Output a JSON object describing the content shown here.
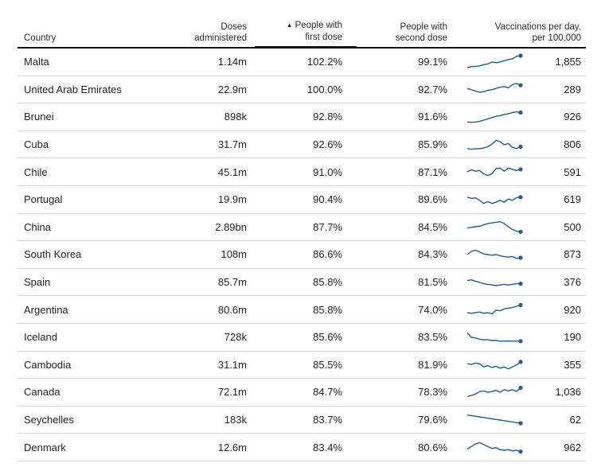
{
  "table": {
    "headers": {
      "country": "Country",
      "doses": [
        "Doses",
        "administered"
      ],
      "first_dose": [
        "People with",
        "first dose"
      ],
      "second_dose": [
        "People with",
        "second dose"
      ],
      "per_day": [
        "Vaccinations per day,",
        "per 100,000"
      ]
    },
    "sorted_column": "first_dose",
    "sort_arrow": "▲"
  },
  "chart_data": {
    "type": "table",
    "columns": [
      "Country",
      "Doses administered",
      "People with first dose",
      "People with second dose",
      "Vaccinations per day, per 100,000"
    ],
    "spark_color": "#1f5f8b",
    "rows": [
      {
        "country": "Malta",
        "doses": "1.14m",
        "first": "102.2%",
        "second": "99.1%",
        "per_day": "1,855",
        "spark": [
          0.05,
          0.15,
          0.15,
          0.2,
          0.3,
          0.35,
          0.5,
          0.45,
          0.5,
          0.6,
          0.7,
          0.75,
          0.95,
          1.0
        ]
      },
      {
        "country": "United Arab Emirates",
        "doses": "22.9m",
        "first": "100.0%",
        "second": "92.7%",
        "per_day": "289",
        "spark": [
          0.55,
          0.45,
          0.35,
          0.25,
          0.3,
          0.4,
          0.45,
          0.55,
          0.65,
          0.7,
          0.6,
          0.85,
          0.95,
          0.8
        ]
      },
      {
        "country": "Brunei",
        "doses": "898k",
        "first": "92.8%",
        "second": "91.6%",
        "per_day": "926",
        "spark": [
          0.1,
          0.08,
          0.1,
          0.15,
          0.25,
          0.35,
          0.45,
          0.55,
          0.6,
          0.7,
          0.75,
          0.85,
          0.9,
          0.85
        ]
      },
      {
        "country": "Cuba",
        "doses": "31.7m",
        "first": "92.6%",
        "second": "85.9%",
        "per_day": "806",
        "spark": [
          0.2,
          0.15,
          0.18,
          0.2,
          0.25,
          0.35,
          0.55,
          0.85,
          0.75,
          0.5,
          0.6,
          0.3,
          0.2,
          0.35
        ]
      },
      {
        "country": "Chile",
        "doses": "45.1m",
        "first": "91.0%",
        "second": "87.1%",
        "per_day": "591",
        "spark": [
          0.5,
          0.65,
          0.55,
          0.6,
          0.35,
          0.2,
          0.35,
          0.75,
          0.8,
          0.55,
          0.8,
          0.7,
          0.6,
          0.7
        ]
      },
      {
        "country": "Portugal",
        "doses": "19.9m",
        "first": "90.4%",
        "second": "89.6%",
        "per_day": "619",
        "spark": [
          0.7,
          0.6,
          0.65,
          0.45,
          0.2,
          0.35,
          0.2,
          0.3,
          0.45,
          0.3,
          0.55,
          0.45,
          0.65,
          0.7
        ]
      },
      {
        "country": "China",
        "doses": "2.89bn",
        "first": "87.7%",
        "second": "84.5%",
        "per_day": "500",
        "spark": [
          0.4,
          0.45,
          0.5,
          0.55,
          0.65,
          0.75,
          0.8,
          0.85,
          0.9,
          0.75,
          0.5,
          0.3,
          0.15,
          0.1
        ]
      },
      {
        "country": "South Korea",
        "doses": "108m",
        "first": "86.6%",
        "second": "84.3%",
        "per_day": "873",
        "spark": [
          0.5,
          0.75,
          0.85,
          0.7,
          0.55,
          0.5,
          0.45,
          0.5,
          0.4,
          0.35,
          0.3,
          0.35,
          0.2,
          0.25
        ]
      },
      {
        "country": "Spain",
        "doses": "85.7m",
        "first": "85.8%",
        "second": "81.5%",
        "per_day": "376",
        "spark": [
          0.65,
          0.7,
          0.6,
          0.5,
          0.4,
          0.35,
          0.3,
          0.25,
          0.3,
          0.35,
          0.3,
          0.35,
          0.4,
          0.4
        ]
      },
      {
        "country": "Argentina",
        "doses": "80.6m",
        "first": "85.8%",
        "second": "74.0%",
        "per_day": "920",
        "spark": [
          0.25,
          0.2,
          0.25,
          0.3,
          0.2,
          0.25,
          0.15,
          0.45,
          0.4,
          0.55,
          0.6,
          0.65,
          0.75,
          0.85
        ]
      },
      {
        "country": "Iceland",
        "doses": "728k",
        "first": "85.6%",
        "second": "83.5%",
        "per_day": "190",
        "spark": [
          0.85,
          0.5,
          0.45,
          0.35,
          0.3,
          0.3,
          0.25,
          0.25,
          0.2,
          0.2,
          0.22,
          0.2,
          0.2,
          0.2
        ]
      },
      {
        "country": "Cambodia",
        "doses": "31.1m",
        "first": "85.5%",
        "second": "81.9%",
        "per_day": "355",
        "spark": [
          0.55,
          0.5,
          0.6,
          0.55,
          0.3,
          0.4,
          0.25,
          0.35,
          0.2,
          0.3,
          0.15,
          0.3,
          0.45,
          0.7
        ]
      },
      {
        "country": "Canada",
        "doses": "72.1m",
        "first": "84.7%",
        "second": "78.3%",
        "per_day": "1,036",
        "spark": [
          0.15,
          0.25,
          0.35,
          0.55,
          0.6,
          0.5,
          0.55,
          0.65,
          0.5,
          0.7,
          0.6,
          0.7,
          0.55,
          0.85
        ]
      },
      {
        "country": "Seychelles",
        "doses": "183k",
        "first": "83.7%",
        "second": "79.6%",
        "per_day": "62",
        "spark": [
          0.9,
          0.85,
          0.8,
          0.75,
          0.7,
          0.65,
          0.6,
          0.55,
          0.5,
          0.45,
          0.4,
          0.35,
          0.3,
          0.25
        ]
      },
      {
        "country": "Denmark",
        "doses": "12.6m",
        "first": "83.4%",
        "second": "80.6%",
        "per_day": "962",
        "spark": [
          0.35,
          0.55,
          0.75,
          0.85,
          0.7,
          0.55,
          0.4,
          0.45,
          0.3,
          0.25,
          0.3,
          0.2,
          0.25,
          0.15
        ]
      }
    ]
  }
}
